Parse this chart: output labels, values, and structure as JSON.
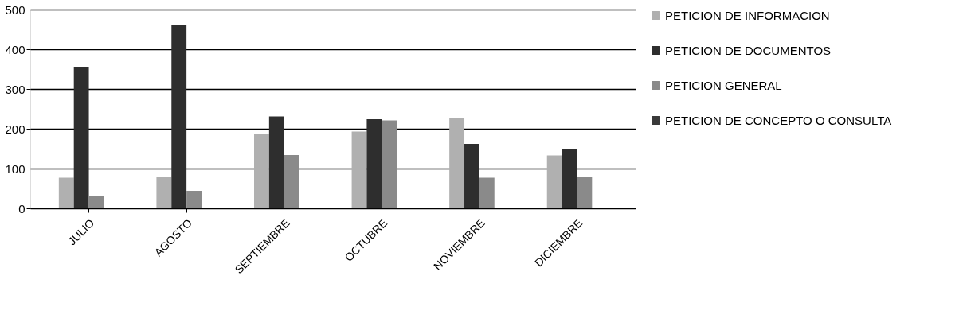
{
  "chart_data": {
    "type": "bar",
    "categories": [
      "JULIO",
      "AGOSTO",
      "SEPTIEMBRE",
      "OCTUBRE",
      "NOVIEMBRE",
      "DICIEMBRE"
    ],
    "series": [
      {
        "name": "PETICION DE INFORMACION",
        "color": "#b0b0b0",
        "values": [
          77,
          79,
          187,
          193,
          226,
          133
        ]
      },
      {
        "name": "PETICION DE DOCUMENTOS",
        "color": "#2e2e2e",
        "values": [
          356,
          462,
          231,
          224,
          162,
          149
        ]
      },
      {
        "name": "PETICION GENERAL",
        "color": "#8a8a8a",
        "values": [
          32,
          44,
          134,
          221,
          77,
          79
        ]
      },
      {
        "name": "PETICION DE CONCEPTO O CONSULTA",
        "color": "#3a3a3a",
        "values": [
          0,
          0,
          0,
          0,
          0,
          0
        ]
      }
    ],
    "ylim": [
      0,
      500
    ],
    "yticks": [
      0,
      100,
      200,
      300,
      400,
      500
    ],
    "grid": "y",
    "legend": "right"
  }
}
